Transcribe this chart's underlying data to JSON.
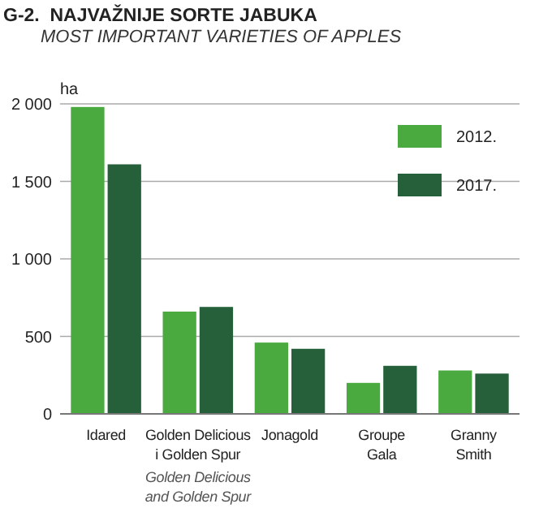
{
  "chart_data": {
    "type": "bar",
    "title": "G-2.  NAJVAŽNIJE SORTE JABUKA",
    "subtitle": "MOST IMPORTANT VARIETIES OF APPLES",
    "ylabel": "ha",
    "categories": [
      "Idared",
      "Golden Delicious\ni Golden Spur",
      "Jonagold",
      "Groupe\nGala",
      "Granny\nSmith"
    ],
    "series": [
      {
        "name": "2012.",
        "color": "#4aaa3f",
        "values": [
          1980,
          660,
          460,
          200,
          280
        ]
      },
      {
        "name": "2017.",
        "color": "#25603a",
        "values": [
          1610,
          690,
          420,
          310,
          260
        ]
      }
    ],
    "ylim": [
      0,
      2000
    ],
    "yticks": [
      0,
      500,
      {
        "value": 1000,
        "label": "1 000"
      },
      {
        "value": 1500,
        "label": "1 500"
      },
      {
        "value": 2000,
        "label": "2 000"
      }
    ],
    "grid": "y",
    "legend": "top right",
    "annotations": [
      "Golden Delicious\nand Golden Spur"
    ]
  }
}
